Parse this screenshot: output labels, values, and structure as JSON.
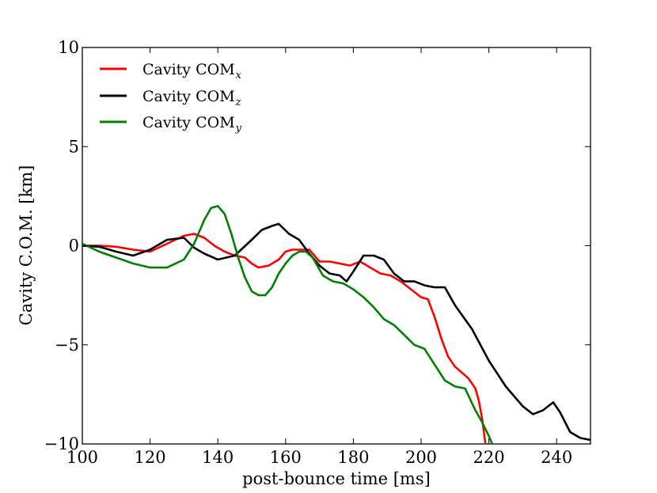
{
  "chart_data": {
    "type": "line",
    "title": "",
    "xlabel": "post-bounce time [ms]",
    "ylabel": "Cavity C.O.M. [km]",
    "xlim": [
      100,
      250
    ],
    "ylim": [
      -10,
      10
    ],
    "x_ticks": [
      100,
      120,
      140,
      160,
      180,
      200,
      220,
      240
    ],
    "y_ticks": [
      -10,
      -5,
      0,
      5,
      10
    ],
    "x_tick_labels": [
      "100",
      "120",
      "140",
      "160",
      "180",
      "200",
      "220",
      "240"
    ],
    "y_tick_labels": [
      "−10",
      "−5",
      "0",
      "5",
      "10"
    ],
    "grid": false,
    "legend_position": "top-left",
    "series": [
      {
        "name": "Cavity COM",
        "subscript": "x",
        "color": "#ff0000",
        "x": [
          100,
          105,
          110,
          115,
          120,
          125,
          130,
          133,
          136,
          139,
          142,
          145,
          148,
          150,
          152,
          155,
          158,
          160,
          162,
          165,
          167,
          170,
          173,
          176,
          179,
          182,
          185,
          188,
          191,
          194,
          197,
          200,
          202,
          204,
          206,
          208,
          210,
          212,
          214,
          216,
          217,
          218,
          219
        ],
        "y": [
          0.0,
          0.0,
          -0.05,
          -0.2,
          -0.3,
          0.1,
          0.5,
          0.6,
          0.4,
          0.0,
          -0.3,
          -0.5,
          -0.6,
          -0.9,
          -1.1,
          -1.0,
          -0.7,
          -0.3,
          -0.2,
          -0.2,
          -0.2,
          -0.8,
          -0.8,
          -0.9,
          -1.0,
          -0.8,
          -1.1,
          -1.4,
          -1.5,
          -1.8,
          -2.2,
          -2.6,
          -2.7,
          -3.6,
          -4.7,
          -5.6,
          -6.1,
          -6.4,
          -6.7,
          -7.2,
          -7.8,
          -8.7,
          -10.0
        ]
      },
      {
        "name": "Cavity COM",
        "subscript": "z",
        "color": "#000000",
        "x": [
          100,
          105,
          110,
          115,
          120,
          125,
          130,
          133,
          136,
          140,
          145,
          150,
          153,
          156,
          158,
          161,
          164,
          167,
          170,
          173,
          176,
          178,
          180,
          183,
          186,
          189,
          192,
          195,
          198,
          201,
          204,
          207,
          210,
          215,
          220,
          225,
          230,
          233,
          236,
          239,
          241,
          244,
          247,
          250
        ],
        "y": [
          0.0,
          -0.05,
          -0.3,
          -0.5,
          -0.2,
          0.3,
          0.4,
          -0.1,
          -0.4,
          -0.7,
          -0.5,
          0.3,
          0.8,
          1.0,
          1.1,
          0.6,
          0.3,
          -0.4,
          -1.0,
          -1.4,
          -1.5,
          -1.8,
          -1.3,
          -0.5,
          -0.5,
          -0.7,
          -1.4,
          -1.8,
          -1.8,
          -2.0,
          -2.1,
          -2.1,
          -3.0,
          -4.2,
          -5.8,
          -7.1,
          -8.1,
          -8.5,
          -8.3,
          -7.9,
          -8.4,
          -9.4,
          -9.7,
          -9.8
        ]
      },
      {
        "name": "Cavity COM",
        "subscript": "y",
        "color": "#008000",
        "x": [
          100,
          105,
          110,
          115,
          120,
          125,
          130,
          133,
          136,
          138,
          140,
          142,
          144,
          146,
          148,
          150,
          152,
          154,
          156,
          158,
          160,
          162,
          164,
          166,
          168,
          171,
          174,
          177,
          180,
          183,
          186,
          189,
          192,
          195,
          198,
          201,
          204,
          207,
          210,
          213,
          216,
          218,
          220,
          221
        ],
        "y": [
          0.1,
          -0.3,
          -0.6,
          -0.9,
          -1.1,
          -1.1,
          -0.7,
          0.1,
          1.3,
          1.9,
          2.0,
          1.6,
          0.6,
          -0.6,
          -1.6,
          -2.3,
          -2.5,
          -2.5,
          -2.1,
          -1.4,
          -0.9,
          -0.5,
          -0.3,
          -0.3,
          -0.6,
          -1.5,
          -1.8,
          -1.9,
          -2.2,
          -2.6,
          -3.1,
          -3.7,
          -4.0,
          -4.5,
          -5.0,
          -5.2,
          -6.0,
          -6.8,
          -7.1,
          -7.2,
          -8.3,
          -8.9,
          -9.6,
          -10.0
        ]
      }
    ]
  }
}
